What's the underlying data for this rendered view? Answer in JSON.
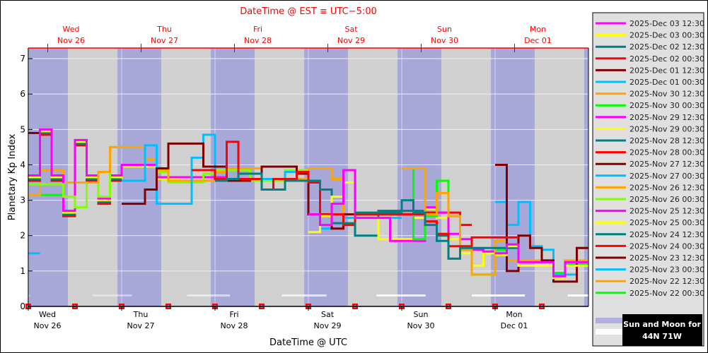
{
  "chart_data": {
    "type": "line",
    "step": true,
    "title": "DateTime @ EST ≡ UTC−5:00",
    "xlabel": "DateTime @ UTC",
    "ylabel": "Planetary Kp Index",
    "xlim": [
      "2025-11-26 00:00",
      "2025-12-02 00:00"
    ],
    "ylim": [
      0,
      7.3
    ],
    "yticks": [
      0,
      1,
      2,
      3,
      4,
      5,
      6,
      7
    ],
    "grid": true,
    "legend_position": "right",
    "bottom_ticks": [
      {
        "time": "2025-11-26 00:00",
        "day": "Wed",
        "date": "Nov 26"
      },
      {
        "time": "2025-11-27 00:00",
        "day": "Thu",
        "date": "Nov 27"
      },
      {
        "time": "2025-11-28 00:00",
        "day": "Fri",
        "date": "Nov 28"
      },
      {
        "time": "2025-11-29 00:00",
        "day": "Sat",
        "date": "Nov 29"
      },
      {
        "time": "2025-11-30 00:00",
        "day": "Sun",
        "date": "Nov 30"
      },
      {
        "time": "2025-12-01 00:00",
        "day": "Mon",
        "date": "Dec 01"
      }
    ],
    "top_ticks": [
      {
        "time": "2025-11-26 05:00",
        "day": "Wed",
        "date": "Nov 26"
      },
      {
        "time": "2025-11-27 05:00",
        "day": "Thu",
        "date": "Nov 27"
      },
      {
        "time": "2025-11-28 05:00",
        "day": "Fri",
        "date": "Nov 28"
      },
      {
        "time": "2025-11-29 05:00",
        "day": "Sat",
        "date": "Nov 29"
      },
      {
        "time": "2025-11-30 05:00",
        "day": "Sun",
        "date": "Nov 30"
      },
      {
        "time": "2025-12-01 05:00",
        "day": "Mon",
        "date": "Dec 01"
      }
    ],
    "night_shading": [
      [
        "2025-11-25 22:55",
        "2025-11-26 10:10"
      ],
      [
        "2025-11-26 22:55",
        "2025-11-27 10:10"
      ],
      [
        "2025-11-27 22:55",
        "2025-11-28 10:10"
      ],
      [
        "2025-11-28 22:55",
        "2025-11-29 10:10"
      ],
      [
        "2025-11-29 22:55",
        "2025-11-30 10:10"
      ],
      [
        "2025-11-30 22:55",
        "2025-12-01 10:10"
      ],
      [
        "2025-12-01 22:55",
        "2025-12-02 10:10"
      ]
    ],
    "moon_up": [
      [
        "2025-11-25 20:00",
        "2025-11-26 00:30",
        0.3
      ],
      [
        "2025-11-26 16:30",
        "2025-11-27 02:40",
        0.4
      ],
      [
        "2025-11-27 16:50",
        "2025-11-28 03:50",
        0.55
      ],
      [
        "2025-11-28 17:10",
        "2025-11-29 04:40",
        0.7
      ],
      [
        "2025-11-29 17:30",
        "2025-11-30 06:10",
        0.85
      ],
      [
        "2025-11-30 18:00",
        "2025-12-01 07:40",
        0.95
      ],
      [
        "2025-12-01 18:40",
        "2025-12-02 04:00",
        1.0
      ]
    ],
    "markers": [
      "2025-11-26 00:00",
      "2025-11-26 12:00",
      "2025-11-27 00:00",
      "2025-11-27 12:00",
      "2025-11-28 00:00",
      "2025-11-28 12:00",
      "2025-11-29 00:00",
      "2025-11-29 12:00",
      "2025-11-30 00:00",
      "2025-11-30 12:00",
      "2025-12-01 00:00",
      "2025-12-01 12:00"
    ],
    "series": [
      {
        "name": "2025-Dec 03 12:30",
        "color": "#ff00ff",
        "start": "2025-12-01 00:00",
        "kp": [
          1.5,
          1.75,
          1.25,
          1.25,
          1.25,
          0.85,
          1.25,
          1.25
        ]
      },
      {
        "name": "2025-Dec 03 00:30",
        "color": "#ffff00",
        "start": "2025-12-01 00:00",
        "kp": [
          1.45,
          1.7,
          1.15,
          1.15,
          1.15,
          0.8,
          1.15,
          1.15
        ]
      },
      {
        "name": "2025-Dec 02 12:30",
        "color": "#008080",
        "start": "2025-11-29 12:00",
        "kp": [
          2.65,
          2.65,
          2.65,
          2.65,
          3.0,
          2.65,
          2.3,
          1.85,
          1.35,
          1.65,
          1.65,
          1.65,
          1.65,
          1.65
        ]
      },
      {
        "name": "2025-Dec 02 00:30",
        "color": "#ff0000",
        "start": "2025-11-29 12:00",
        "kp": [
          2.6,
          2.6,
          2.6,
          2.6,
          2.6,
          2.6,
          2.4,
          2.05,
          1.7,
          1.7,
          1.95,
          1.95,
          1.95,
          1.95
        ]
      },
      {
        "name": "2025-Dec 01 12:30",
        "color": "#800000",
        "start": "2025-12-01 00:00",
        "kp": [
          4.0,
          1.0,
          2.0,
          1.65,
          1.3,
          0.7,
          0.7,
          1.65
        ]
      },
      {
        "name": "2025-Dec 01 00:30",
        "color": "#00bfff",
        "start": "2025-12-01 00:00",
        "kp": [
          2.95,
          2.3,
          2.95,
          1.7,
          1.6,
          0.9,
          0.9,
          1.65
        ]
      },
      {
        "name": "2025-Nov 30 12:30",
        "color": "#ffa500",
        "start": "2025-11-30 00:00",
        "kp": [
          3.9,
          3.9,
          2.6,
          3.2,
          2.55,
          1.6,
          0.9,
          0.9,
          1.85,
          1.3,
          1.3,
          1.3,
          1.3,
          0.85,
          1.3,
          1.3
        ]
      },
      {
        "name": "2025-Nov 30 00:30",
        "color": "#00ff00",
        "start": "2025-11-30 00:00",
        "kp": [
          3.9,
          1.9,
          2.55,
          3.55,
          2.55,
          1.6,
          0.9,
          0.9,
          1.6,
          1.75,
          1.25,
          1.25,
          1.25,
          0.95,
          1.2,
          1.2
        ]
      },
      {
        "name": "2025-Nov 29 12:30",
        "color": "#ff00ff",
        "start": "2025-11-29 00:00",
        "kp": [
          2.6,
          2.3,
          2.9,
          3.85,
          2.5,
          2.5,
          2.5,
          1.85,
          1.85,
          1.85,
          2.8,
          2.65,
          2.05,
          1.9,
          1.6,
          1.55
        ]
      },
      {
        "name": "2025-Nov 29 00:30",
        "color": "#ffff00",
        "start": "2025-11-29 00:00",
        "kp": [
          2.1,
          2.55,
          3.1,
          3.5,
          2.5,
          2.5,
          1.9,
          1.9,
          1.9,
          2.5,
          2.75,
          2.5,
          1.9,
          1.5,
          1.15,
          1.5
        ]
      },
      {
        "name": "2025-Nov 28 12:30",
        "color": "#008080",
        "start": "2025-11-28 00:00",
        "kp": [
          3.55,
          3.6,
          3.75,
          3.75,
          3.3,
          3.3,
          3.55,
          3.55,
          3.55,
          3.3,
          2.35,
          2.35,
          2.0,
          2.0,
          2.7,
          2.7,
          2.7,
          2.7,
          2.4,
          2.0
        ]
      },
      {
        "name": "2025-Nov 28 00:30",
        "color": "#ff0000",
        "start": "2025-11-27 18:00",
        "kp": [
          3.85,
          3.85,
          3.6,
          4.65,
          3.6,
          3.6,
          3.3,
          3.6,
          3.6,
          3.8,
          3.5,
          2.6,
          2.6,
          2.3,
          2.6,
          2.6,
          2.6,
          2.6,
          2.6,
          2.65,
          2.65,
          2.65,
          2.65,
          2.3
        ]
      },
      {
        "name": "2025-Nov 27 12:30",
        "color": "#800000",
        "start": "2025-11-27 00:00",
        "kp": [
          2.9,
          2.9,
          3.3,
          3.9,
          4.6,
          4.6,
          4.6,
          3.95,
          3.95,
          3.55,
          3.55,
          3.6,
          3.95,
          3.95,
          3.95,
          3.75,
          2.6,
          2.6,
          2.2,
          2.6,
          2.6,
          2.6,
          2.6,
          2.6
        ]
      },
      {
        "name": "2025-Nov 27 00:30",
        "color": "#00bfff",
        "start": "2025-11-27 00:00",
        "kp": [
          3.55,
          3.55,
          4.55,
          2.9,
          2.9,
          2.9,
          4.2,
          4.85,
          3.6,
          3.6,
          3.6,
          3.6,
          3.6,
          3.6,
          3.8,
          3.8,
          3.5,
          2.2,
          2.2,
          2.5,
          2.5,
          2.5,
          2.5,
          2.5
        ]
      },
      {
        "name": "2025-Nov 26 12:30",
        "color": "#ffa500",
        "start": "2025-11-26 12:00",
        "kp": [
          3.5,
          3.5,
          3.8,
          4.5,
          4.5,
          4.5,
          4.15,
          3.85,
          3.55,
          3.55,
          3.55,
          3.55,
          3.8,
          3.9,
          3.9,
          3.9,
          3.6,
          3.6,
          3.6,
          3.6,
          3.9,
          3.9,
          3.6,
          2.6
        ]
      },
      {
        "name": "2025-Nov 26 00:30",
        "color": "#80ff00",
        "start": "2025-11-26 00:00",
        "kp": [
          3.45,
          3.45,
          3.45,
          3.1,
          2.8,
          3.5,
          3.1,
          4.5,
          4.5,
          4.5,
          4.15,
          3.8,
          3.5,
          3.5,
          3.5,
          3.75,
          3.85,
          3.85,
          3.85,
          3.55,
          3.55,
          3.55,
          3.85,
          3.85,
          3.55
        ]
      },
      {
        "name": "2025-Nov 25 12:30",
        "color": "#ff00ff",
        "start": "2025-11-26 00:00",
        "kp": [
          3.7,
          5.0,
          3.7,
          2.7,
          4.7,
          3.7,
          3.05,
          3.7,
          4.0,
          4.0,
          4.0,
          3.65,
          3.65,
          3.65,
          3.65,
          3.65,
          3.65
        ]
      },
      {
        "name": "2025-Nov 25 00:30",
        "color": "#ffff00",
        "start": "2025-11-26 00:00",
        "kp": [
          3.65,
          4.95,
          3.65,
          2.65,
          4.65,
          3.65,
          3.0,
          3.65,
          3.95,
          3.95,
          3.95,
          3.6,
          3.6
        ]
      },
      {
        "name": "2025-Nov 24 12:30",
        "color": "#008080",
        "start": "2025-11-26 00:00",
        "kp": [
          3.6,
          4.9,
          3.6,
          2.6,
          4.6,
          3.6,
          2.95,
          3.6
        ]
      },
      {
        "name": "2025-Nov 24 00:30",
        "color": "#ff0000",
        "start": "2025-11-26 00:00",
        "kp": [
          3.55,
          4.85,
          3.55,
          2.55,
          4.55,
          3.55,
          2.9,
          3.55,
          3.55
        ]
      },
      {
        "name": "2025-Nov 23 12:30",
        "color": "#800000",
        "start": "2025-11-26 00:00",
        "kp": [
          4.9,
          4.9
        ]
      },
      {
        "name": "2025-Nov 23 00:30",
        "color": "#00bfff",
        "start": "2025-11-26 00:00",
        "kp": [
          1.5
        ]
      },
      {
        "name": "2025-Nov 22 12:30",
        "color": "#ffa500",
        "start": "2025-11-26 00:00",
        "kp": [
          3.15,
          3.85,
          3.85,
          3.5
        ]
      },
      {
        "name": "2025-Nov 22 00:30",
        "color": "#00ff00",
        "start": "2025-11-26 00:00",
        "kp": [
          3.45,
          3.15,
          3.15
        ]
      }
    ],
    "sun_moon_label_1": "Sun and Moon for",
    "sun_moon_label_2": "44N 71W",
    "colors": {
      "night": "#a8a8d8",
      "day": "#d0d0d0",
      "moon": "#ffffff",
      "axis_top": "#ff0000",
      "legend_bg": "#e0e0e0"
    }
  }
}
